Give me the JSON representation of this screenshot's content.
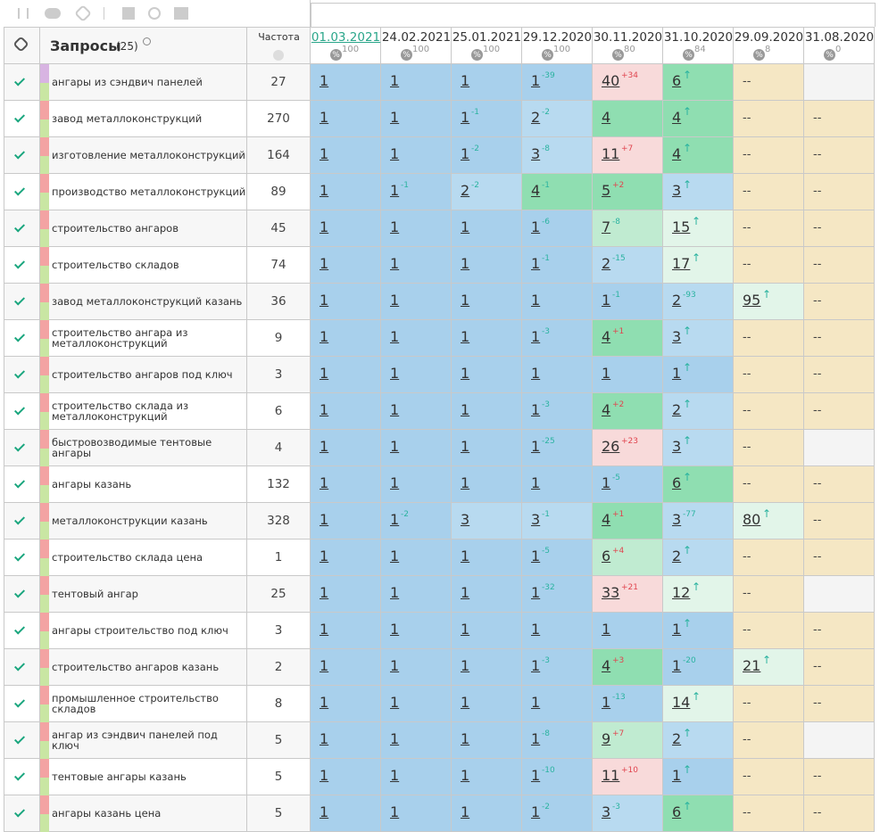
{
  "header": {
    "title": "Запросы",
    "count": "(25)",
    "freq": "Частота",
    "percent_icon": "%",
    "dates": [
      {
        "date": "01.03.2021",
        "pct": 100
      },
      {
        "date": "24.02.2021",
        "pct": 100
      },
      {
        "date": "25.01.2021",
        "pct": 100
      },
      {
        "date": "29.12.2020",
        "pct": 100
      },
      {
        "date": "30.11.2020",
        "pct": 80
      },
      {
        "date": "31.10.2020",
        "pct": 84
      },
      {
        "date": "29.09.2020",
        "pct": 8
      },
      {
        "date": "31.08.2020",
        "pct": 0
      }
    ]
  },
  "palette": {
    "B": "#a8d0ec",
    "L": "#b8daf0",
    "G": "#8fdeb1",
    "g": "#c0ebd1",
    "P": "#f8dada",
    "p": "#e2f5e9",
    "Y": "#f5e7c4",
    "W": "#f4f4f4"
  },
  "rows": [
    {
      "query": "ангары из сэндвич панелей",
      "freq": 27,
      "cells": [
        [
          1,
          "",
          "B"
        ],
        [
          1,
          "",
          "B"
        ],
        [
          1,
          "",
          "B"
        ],
        [
          1,
          "-39",
          "B"
        ],
        [
          40,
          "+34",
          "P"
        ],
        [
          6,
          "↑",
          "G"
        ],
        [
          "--",
          "",
          "Y"
        ],
        [
          "",
          "",
          "W"
        ]
      ]
    },
    {
      "query": "завод металлоконструкций",
      "freq": 270,
      "cells": [
        [
          1,
          "",
          "B"
        ],
        [
          1,
          "",
          "B"
        ],
        [
          1,
          "-1",
          "B"
        ],
        [
          2,
          "-2",
          "L"
        ],
        [
          4,
          "",
          "G"
        ],
        [
          4,
          "↑",
          "G"
        ],
        [
          "--",
          "",
          "Y"
        ],
        [
          "--",
          "",
          "Y"
        ]
      ]
    },
    {
      "query": "изготовление металлоконструкций",
      "freq": 164,
      "cells": [
        [
          1,
          "",
          "B"
        ],
        [
          1,
          "",
          "B"
        ],
        [
          1,
          "-2",
          "B"
        ],
        [
          3,
          "-8",
          "L"
        ],
        [
          11,
          "+7",
          "P"
        ],
        [
          4,
          "↑",
          "G"
        ],
        [
          "--",
          "",
          "Y"
        ],
        [
          "--",
          "",
          "Y"
        ]
      ]
    },
    {
      "query": "производство металлоконструкций",
      "freq": 89,
      "cells": [
        [
          1,
          "",
          "B"
        ],
        [
          1,
          "-1",
          "B"
        ],
        [
          2,
          "-2",
          "L"
        ],
        [
          4,
          "-1",
          "G"
        ],
        [
          5,
          "+2",
          "G"
        ],
        [
          3,
          "↑",
          "L"
        ],
        [
          "--",
          "",
          "Y"
        ],
        [
          "--",
          "",
          "Y"
        ]
      ]
    },
    {
      "query": "строительство ангаров",
      "freq": 45,
      "cells": [
        [
          1,
          "",
          "B"
        ],
        [
          1,
          "",
          "B"
        ],
        [
          1,
          "",
          "B"
        ],
        [
          1,
          "-6",
          "B"
        ],
        [
          7,
          "-8",
          "g"
        ],
        [
          15,
          "↑",
          "p"
        ],
        [
          "--",
          "",
          "Y"
        ],
        [
          "--",
          "",
          "Y"
        ]
      ]
    },
    {
      "query": "строительство складов",
      "freq": 74,
      "cells": [
        [
          1,
          "",
          "B"
        ],
        [
          1,
          "",
          "B"
        ],
        [
          1,
          "",
          "B"
        ],
        [
          1,
          "-1",
          "B"
        ],
        [
          2,
          "-15",
          "L"
        ],
        [
          17,
          "↑",
          "p"
        ],
        [
          "--",
          "",
          "Y"
        ],
        [
          "--",
          "",
          "Y"
        ]
      ]
    },
    {
      "query": "завод металлоконструкций казань",
      "freq": 36,
      "cells": [
        [
          1,
          "",
          "B"
        ],
        [
          1,
          "",
          "B"
        ],
        [
          1,
          "",
          "B"
        ],
        [
          1,
          "",
          "B"
        ],
        [
          1,
          "-1",
          "B"
        ],
        [
          2,
          "-93",
          "L"
        ],
        [
          95,
          "↑",
          "p"
        ],
        [
          "--",
          "",
          "Y"
        ]
      ]
    },
    {
      "query": "строительство ангара из металлоконструкций",
      "freq": 9,
      "cells": [
        [
          1,
          "",
          "B"
        ],
        [
          1,
          "",
          "B"
        ],
        [
          1,
          "",
          "B"
        ],
        [
          1,
          "-3",
          "B"
        ],
        [
          4,
          "+1",
          "G"
        ],
        [
          3,
          "↑",
          "L"
        ],
        [
          "--",
          "",
          "Y"
        ],
        [
          "--",
          "",
          "Y"
        ]
      ]
    },
    {
      "query": "строительство ангаров под ключ",
      "freq": 3,
      "cells": [
        [
          1,
          "",
          "B"
        ],
        [
          1,
          "",
          "B"
        ],
        [
          1,
          "",
          "B"
        ],
        [
          1,
          "",
          "B"
        ],
        [
          1,
          "",
          "B"
        ],
        [
          1,
          "↑",
          "B"
        ],
        [
          "--",
          "",
          "Y"
        ],
        [
          "--",
          "",
          "Y"
        ]
      ]
    },
    {
      "query": "строительство склада из металлоконструкций",
      "freq": 6,
      "cells": [
        [
          1,
          "",
          "B"
        ],
        [
          1,
          "",
          "B"
        ],
        [
          1,
          "",
          "B"
        ],
        [
          1,
          "-3",
          "B"
        ],
        [
          4,
          "+2",
          "G"
        ],
        [
          2,
          "↑",
          "L"
        ],
        [
          "--",
          "",
          "Y"
        ],
        [
          "--",
          "",
          "Y"
        ]
      ]
    },
    {
      "query": "быстровозводимые тентовые ангары",
      "freq": 4,
      "cells": [
        [
          1,
          "",
          "B"
        ],
        [
          1,
          "",
          "B"
        ],
        [
          1,
          "",
          "B"
        ],
        [
          1,
          "-25",
          "B"
        ],
        [
          26,
          "+23",
          "P"
        ],
        [
          3,
          "↑",
          "L"
        ],
        [
          "--",
          "",
          "Y"
        ],
        [
          "",
          "",
          "W"
        ]
      ]
    },
    {
      "query": "ангары казань",
      "freq": 132,
      "cells": [
        [
          1,
          "",
          "B"
        ],
        [
          1,
          "",
          "B"
        ],
        [
          1,
          "",
          "B"
        ],
        [
          1,
          "",
          "B"
        ],
        [
          1,
          "-5",
          "B"
        ],
        [
          6,
          "↑",
          "G"
        ],
        [
          "--",
          "",
          "Y"
        ],
        [
          "--",
          "",
          "Y"
        ]
      ]
    },
    {
      "query": "металлоконструкции казань",
      "freq": 328,
      "cells": [
        [
          1,
          "",
          "B"
        ],
        [
          1,
          "-2",
          "B"
        ],
        [
          3,
          "",
          "L"
        ],
        [
          3,
          "-1",
          "L"
        ],
        [
          4,
          "+1",
          "G"
        ],
        [
          3,
          "-77",
          "L"
        ],
        [
          80,
          "↑",
          "p"
        ],
        [
          "--",
          "",
          "Y"
        ]
      ]
    },
    {
      "query": "строительство склада цена",
      "freq": 1,
      "cells": [
        [
          1,
          "",
          "B"
        ],
        [
          1,
          "",
          "B"
        ],
        [
          1,
          "",
          "B"
        ],
        [
          1,
          "-5",
          "B"
        ],
        [
          6,
          "+4",
          "g"
        ],
        [
          2,
          "↑",
          "L"
        ],
        [
          "--",
          "",
          "Y"
        ],
        [
          "--",
          "",
          "Y"
        ]
      ]
    },
    {
      "query": "тентовый ангар",
      "freq": 25,
      "cells": [
        [
          1,
          "",
          "B"
        ],
        [
          1,
          "",
          "B"
        ],
        [
          1,
          "",
          "B"
        ],
        [
          1,
          "-32",
          "B"
        ],
        [
          33,
          "+21",
          "P"
        ],
        [
          12,
          "↑",
          "p"
        ],
        [
          "--",
          "",
          "Y"
        ],
        [
          "",
          "",
          "W"
        ]
      ]
    },
    {
      "query": "ангары строительство под ключ",
      "freq": 3,
      "cells": [
        [
          1,
          "",
          "B"
        ],
        [
          1,
          "",
          "B"
        ],
        [
          1,
          "",
          "B"
        ],
        [
          1,
          "",
          "B"
        ],
        [
          1,
          "",
          "B"
        ],
        [
          1,
          "↑",
          "B"
        ],
        [
          "--",
          "",
          "Y"
        ],
        [
          "--",
          "",
          "Y"
        ]
      ]
    },
    {
      "query": "строительство ангаров казань",
      "freq": 2,
      "cells": [
        [
          1,
          "",
          "B"
        ],
        [
          1,
          "",
          "B"
        ],
        [
          1,
          "",
          "B"
        ],
        [
          1,
          "-3",
          "B"
        ],
        [
          4,
          "+3",
          "G"
        ],
        [
          1,
          "-20",
          "B"
        ],
        [
          21,
          "↑",
          "p"
        ],
        [
          "--",
          "",
          "Y"
        ]
      ]
    },
    {
      "query": "промышленное строительство складов",
      "freq": 8,
      "cells": [
        [
          1,
          "",
          "B"
        ],
        [
          1,
          "",
          "B"
        ],
        [
          1,
          "",
          "B"
        ],
        [
          1,
          "",
          "B"
        ],
        [
          1,
          "-13",
          "B"
        ],
        [
          14,
          "↑",
          "p"
        ],
        [
          "--",
          "",
          "Y"
        ],
        [
          "--",
          "",
          "Y"
        ]
      ]
    },
    {
      "query": "ангар из сэндвич панелей под ключ",
      "freq": 5,
      "cells": [
        [
          1,
          "",
          "B"
        ],
        [
          1,
          "",
          "B"
        ],
        [
          1,
          "",
          "B"
        ],
        [
          1,
          "-8",
          "B"
        ],
        [
          9,
          "+7",
          "g"
        ],
        [
          2,
          "↑",
          "L"
        ],
        [
          "--",
          "",
          "Y"
        ],
        [
          "",
          "",
          "W"
        ]
      ]
    },
    {
      "query": "тентовые ангары казань",
      "freq": 5,
      "cells": [
        [
          1,
          "",
          "B"
        ],
        [
          1,
          "",
          "B"
        ],
        [
          1,
          "",
          "B"
        ],
        [
          1,
          "-10",
          "B"
        ],
        [
          11,
          "+10",
          "P"
        ],
        [
          1,
          "↑",
          "B"
        ],
        [
          "--",
          "",
          "Y"
        ],
        [
          "--",
          "",
          "Y"
        ]
      ]
    },
    {
      "query": "ангары казань цена",
      "freq": 5,
      "cells": [
        [
          1,
          "",
          "B"
        ],
        [
          1,
          "",
          "B"
        ],
        [
          1,
          "",
          "B"
        ],
        [
          1,
          "-2",
          "B"
        ],
        [
          3,
          "-3",
          "L"
        ],
        [
          6,
          "↑",
          "G"
        ],
        [
          "--",
          "",
          "Y"
        ],
        [
          "--",
          "",
          "Y"
        ]
      ]
    }
  ]
}
